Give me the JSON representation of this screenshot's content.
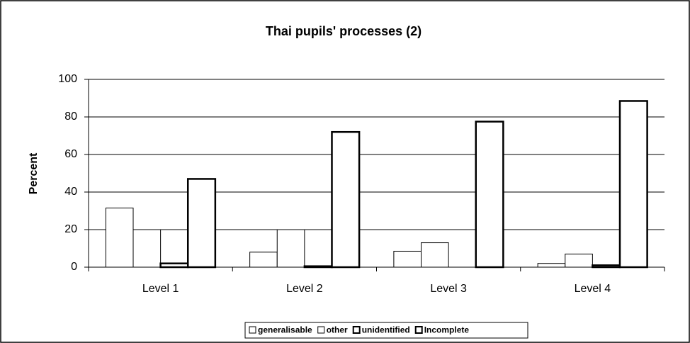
{
  "chart_data": {
    "type": "bar",
    "title": "Thai pupils' processes (2)",
    "y_label": "Percent",
    "categories": [
      "Level 1",
      "Level 2",
      "Level 3",
      "Level 4"
    ],
    "series": [
      {
        "name": "generalisable",
        "color": "#ffffff",
        "values": [
          31.5,
          8,
          8.5,
          2
        ]
      },
      {
        "name": "other",
        "color": "#ffffff",
        "values": [
          20,
          20,
          13,
          7
        ]
      },
      {
        "name": "unidentified",
        "color": "#ffffff",
        "values": [
          2,
          0.5,
          0,
          1
        ]
      },
      {
        "name": "Incomplete",
        "color": "#ffffff",
        "values": [
          47,
          72,
          77.5,
          88.5
        ]
      }
    ],
    "ylim": [
      0,
      100
    ],
    "yticks": [
      0,
      20,
      40,
      60,
      80,
      100
    ],
    "grid": true,
    "legend": "bottom"
  }
}
